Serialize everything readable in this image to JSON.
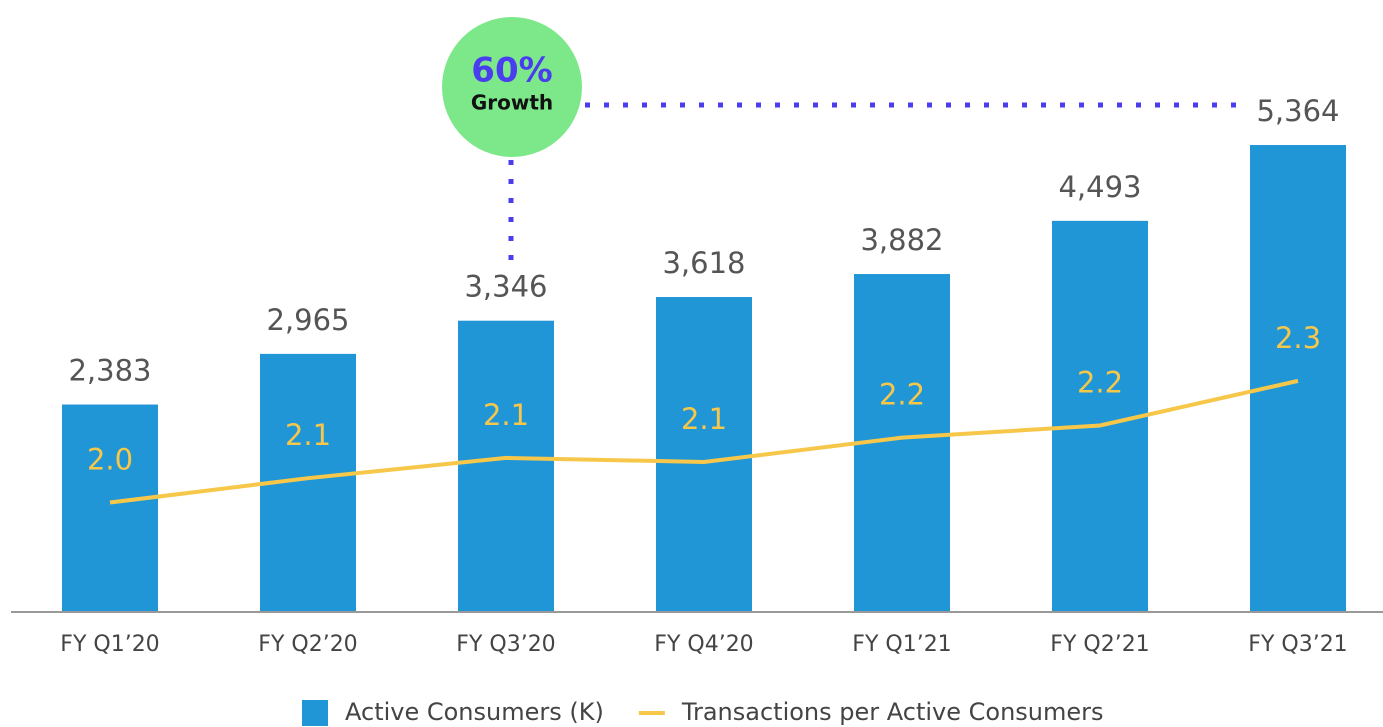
{
  "chart_data": {
    "type": "bar+line",
    "categories": [
      "FY Q1’20",
      "FY Q2’20",
      "FY Q3’20",
      "FY Q4’20",
      "FY Q1’21",
      "FY Q2’21",
      "FY Q3’21"
    ],
    "series": [
      {
        "name": "Active Consumers (K)",
        "type": "bar",
        "color": "#2196d6",
        "values": [
          2383,
          2965,
          3346,
          3618,
          3882,
          4493,
          5364
        ],
        "value_labels": [
          "2,383",
          "2,965",
          "3,346",
          "3,618",
          "3,882",
          "4,493",
          "5,364"
        ]
      },
      {
        "name": "Transactions per Active Consumers",
        "type": "line",
        "axis": "y2",
        "color": "#f7c74a",
        "values": [
          2.0,
          2.06,
          2.11,
          2.1,
          2.16,
          2.19,
          2.3
        ],
        "value_labels": [
          "2.0",
          "2.1",
          "2.1",
          "2.1",
          "2.2",
          "2.2",
          "2.3"
        ]
      }
    ],
    "ylim": [
      0,
      6800
    ],
    "y2lim": [
      1.73,
      3.19
    ],
    "annotation": {
      "text": "60%",
      "subtext": "Growth"
    },
    "legend": "bottom"
  }
}
